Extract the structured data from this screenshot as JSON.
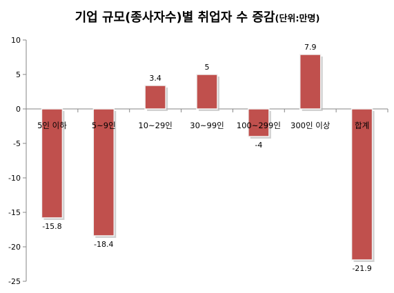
{
  "chart_data": {
    "type": "bar",
    "title": "기업 규모(종사자수)별 취업자 수 증감",
    "title_suffix": "(단위:만명)",
    "categories": [
      "5인 이하",
      "5~9인",
      "10~29인",
      "30~99인",
      "100~299인",
      "300인 이상",
      "합계"
    ],
    "values": [
      -15.8,
      -18.4,
      3.4,
      5,
      -4,
      7.9,
      -21.9
    ],
    "data_labels": [
      "-15.8",
      "-18.4",
      "3.4",
      "5",
      "-4",
      "7.9",
      "-21.9"
    ],
    "ylim": [
      -25,
      10
    ],
    "yticks": [
      10,
      5,
      0,
      -5,
      -10,
      -15,
      -20,
      -25
    ],
    "ytick_labels": [
      "10",
      "5",
      "0",
      "-5",
      "-10",
      "-15",
      "-20",
      "-25"
    ],
    "xlabel": "",
    "ylabel": "",
    "grid": false,
    "legend": "none",
    "colors": {
      "bar_fill": "#c0504d",
      "bar_edge": "#f2f2f2",
      "axis": "#868686",
      "text": "#000000",
      "shadow": "#b0b0b0"
    }
  }
}
